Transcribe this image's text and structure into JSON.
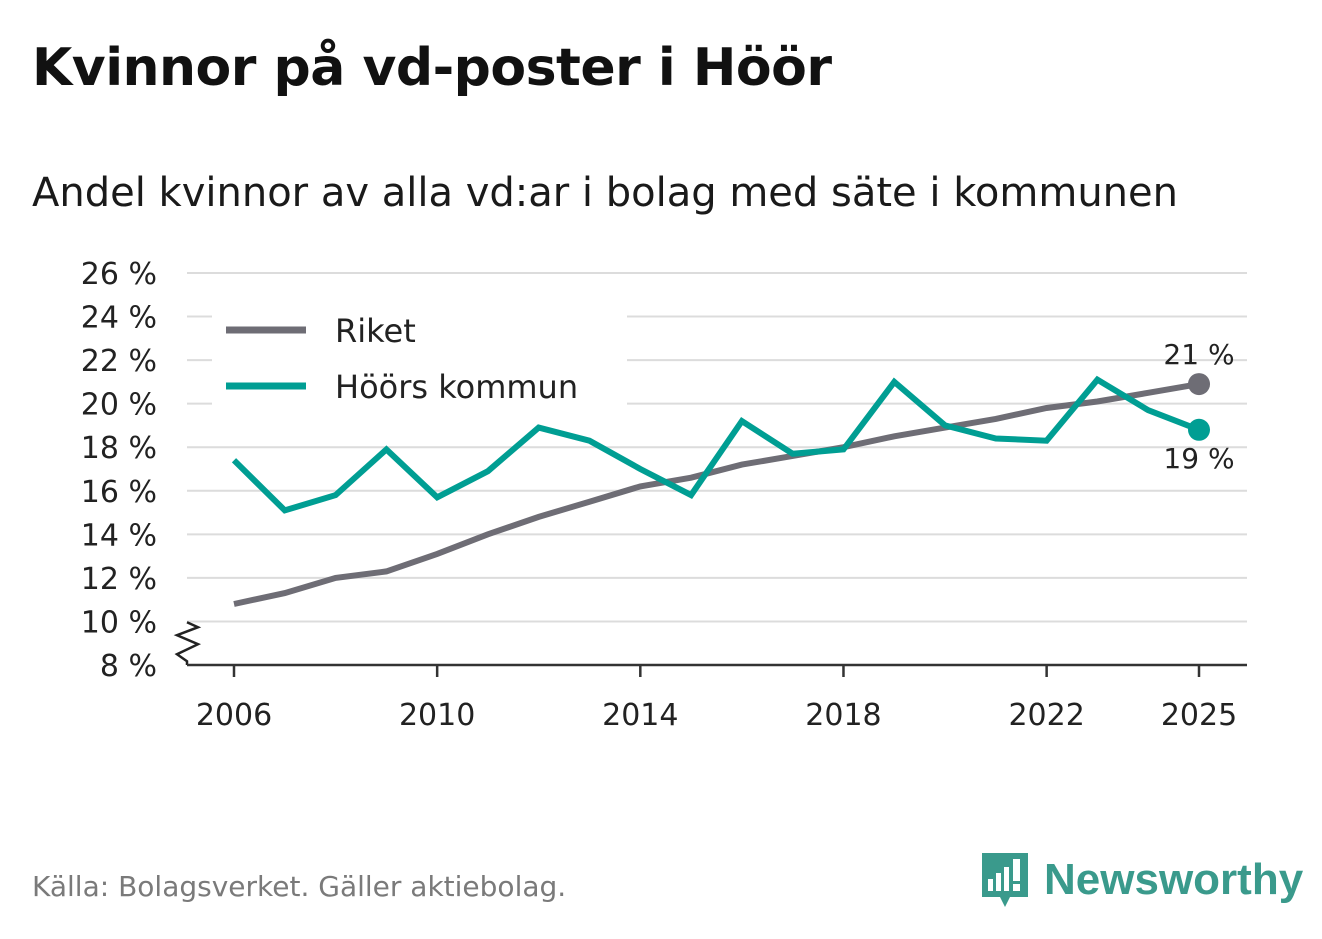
{
  "header": {
    "title": "Kvinnor på vd-poster i Höör",
    "subtitle": "Andel kvinnor av alla vd:ar i bolag med säte i kommunen"
  },
  "footer": {
    "source": "Källa: Bolagsverket. Gäller aktiebolag.",
    "brand": "Newsworthy"
  },
  "colors": {
    "riket": "#6e6d75",
    "hoor": "#009e93",
    "brand": "#3a9a8c",
    "grid": "#dcdcdc"
  },
  "chart_data": {
    "type": "line",
    "title": "Kvinnor på vd-poster i Höör",
    "subtitle": "Andel kvinnor av alla vd:ar i bolag med säte i kommunen",
    "xlabel": "",
    "ylabel": "",
    "x": [
      2006,
      2007,
      2008,
      2009,
      2010,
      2011,
      2012,
      2013,
      2014,
      2015,
      2016,
      2017,
      2018,
      2019,
      2020,
      2021,
      2022,
      2023,
      2024,
      2025
    ],
    "xticks": [
      2006,
      2010,
      2014,
      2018,
      2022,
      2025
    ],
    "xtick_labels": [
      "2006",
      "2010",
      "2014",
      "2018",
      "2022",
      "2025"
    ],
    "ylim": [
      8,
      26
    ],
    "yticks": [
      8,
      10,
      12,
      14,
      16,
      18,
      20,
      22,
      24,
      26
    ],
    "ytick_labels": [
      "8 %",
      "10 %",
      "12 %",
      "14 %",
      "16 %",
      "18 %",
      "20 %",
      "22 %",
      "24 %",
      "26 %"
    ],
    "axis_break": true,
    "grid": true,
    "legend_position": "top-left",
    "series": [
      {
        "name": "Riket",
        "color": "#6e6d75",
        "values": [
          10.8,
          11.3,
          12.0,
          12.3,
          13.1,
          14.0,
          14.8,
          15.5,
          16.2,
          16.6,
          17.2,
          17.6,
          18.0,
          18.5,
          18.9,
          19.3,
          19.8,
          20.1,
          20.5,
          20.9
        ],
        "end_label": "21 %"
      },
      {
        "name": "Höörs kommun",
        "color": "#009e93",
        "values": [
          17.4,
          15.1,
          15.8,
          17.9,
          15.7,
          16.9,
          18.9,
          18.3,
          17.0,
          15.8,
          19.2,
          17.7,
          17.9,
          21.0,
          19.0,
          18.4,
          18.3,
          21.1,
          19.7,
          18.8
        ],
        "end_label": "19 %"
      }
    ]
  }
}
